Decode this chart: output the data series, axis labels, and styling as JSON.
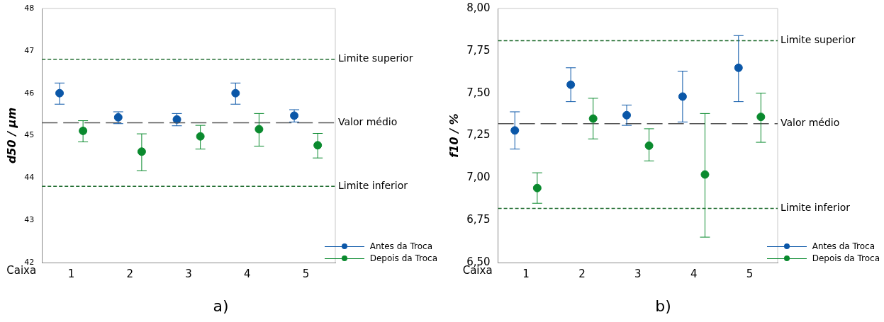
{
  "chart_data": [
    {
      "type": "scatter",
      "ylabel": "d50 / μm",
      "xlabel": "Caixa",
      "xlim": [
        0.5,
        5.5
      ],
      "xticks": [
        1,
        2,
        3,
        4,
        5
      ],
      "ylim": [
        42,
        48
      ],
      "yticks": [
        42,
        43,
        44,
        45,
        46,
        47,
        48
      ],
      "grid": false,
      "legend": "bottom right",
      "marker": "circle",
      "annotations": [
        "a)"
      ],
      "series": [
        {
          "name": "Antes da Troca",
          "color": "#0b57a8",
          "x": [
            0.8,
            1.8,
            2.8,
            3.8,
            4.8
          ],
          "values": [
            46.0,
            45.43,
            45.38,
            46.0,
            45.47
          ],
          "errors": [
            [
              45.74,
              46.24
            ],
            [
              45.28,
              45.56
            ],
            [
              45.23,
              45.52
            ],
            [
              45.74,
              46.24
            ],
            [
              45.32,
              45.61
            ]
          ]
        },
        {
          "name": "Depois da Troca",
          "color": "#0a8a2e",
          "x": [
            1.2,
            2.2,
            3.2,
            4.2,
            5.2
          ],
          "values": [
            45.11,
            44.62,
            44.98,
            45.15,
            44.77
          ],
          "errors": [
            [
              44.85,
              45.35
            ],
            [
              44.17,
              45.04
            ],
            [
              44.68,
              45.24
            ],
            [
              44.75,
              45.52
            ],
            [
              44.47,
              45.05
            ]
          ]
        }
      ],
      "ref_lines": [
        {
          "axis": "y",
          "value": 46.8,
          "label": "Limite superior",
          "color": "#1e6b2e",
          "line_style": "dotted"
        },
        {
          "axis": "y",
          "value": 45.3,
          "label": "Valor médio",
          "color": "#555555",
          "line_style": "dashed"
        },
        {
          "axis": "y",
          "value": 43.8,
          "label": "Limite inferior",
          "color": "#1e6b2e",
          "line_style": "dotted"
        }
      ]
    },
    {
      "type": "scatter",
      "ylabel": "f10 / %",
      "xlabel": "Caixa",
      "xlim": [
        0.5,
        5.5
      ],
      "xticks": [
        1,
        2,
        3,
        4,
        5
      ],
      "ylim": [
        6.5,
        8.0
      ],
      "yticks": [
        {
          "value": 6.5,
          "label": "6,50"
        },
        {
          "value": 6.75,
          "label": "6,75"
        },
        {
          "value": 7.0,
          "label": "7,00"
        },
        {
          "value": 7.25,
          "label": "7,25"
        },
        {
          "value": 7.5,
          "label": "7,50"
        },
        {
          "value": 7.75,
          "label": "7,75"
        },
        {
          "value": 8.0,
          "label": "8,00"
        }
      ],
      "grid": false,
      "legend": "bottom right",
      "marker": "circle",
      "annotations": [
        "b)"
      ],
      "series": [
        {
          "name": "Antes da Troca",
          "color": "#0b57a8",
          "x": [
            0.8,
            1.8,
            2.8,
            3.8,
            4.8
          ],
          "values": [
            7.28,
            7.55,
            7.37,
            7.48,
            7.65
          ],
          "errors": [
            [
              7.17,
              7.39
            ],
            [
              7.45,
              7.65
            ],
            [
              7.31,
              7.43
            ],
            [
              7.33,
              7.63
            ],
            [
              7.45,
              7.84
            ]
          ]
        },
        {
          "name": "Depois da Troca",
          "color": "#0a8a2e",
          "x": [
            1.2,
            2.2,
            3.2,
            4.2,
            5.2
          ],
          "values": [
            6.94,
            7.35,
            7.19,
            7.02,
            7.36
          ],
          "errors": [
            [
              6.85,
              7.03
            ],
            [
              7.23,
              7.47
            ],
            [
              7.1,
              7.29
            ],
            [
              6.65,
              7.38
            ],
            [
              7.21,
              7.5
            ]
          ]
        }
      ],
      "ref_lines": [
        {
          "axis": "y",
          "value": 7.81,
          "label": "Limite superior",
          "color": "#1e6b2e",
          "line_style": "dotted"
        },
        {
          "axis": "y",
          "value": 7.32,
          "label": "Valor médio",
          "color": "#555555",
          "line_style": "dashed"
        },
        {
          "axis": "y",
          "value": 6.82,
          "label": "Limite inferior",
          "color": "#1e6b2e",
          "line_style": "dotted"
        }
      ]
    }
  ]
}
